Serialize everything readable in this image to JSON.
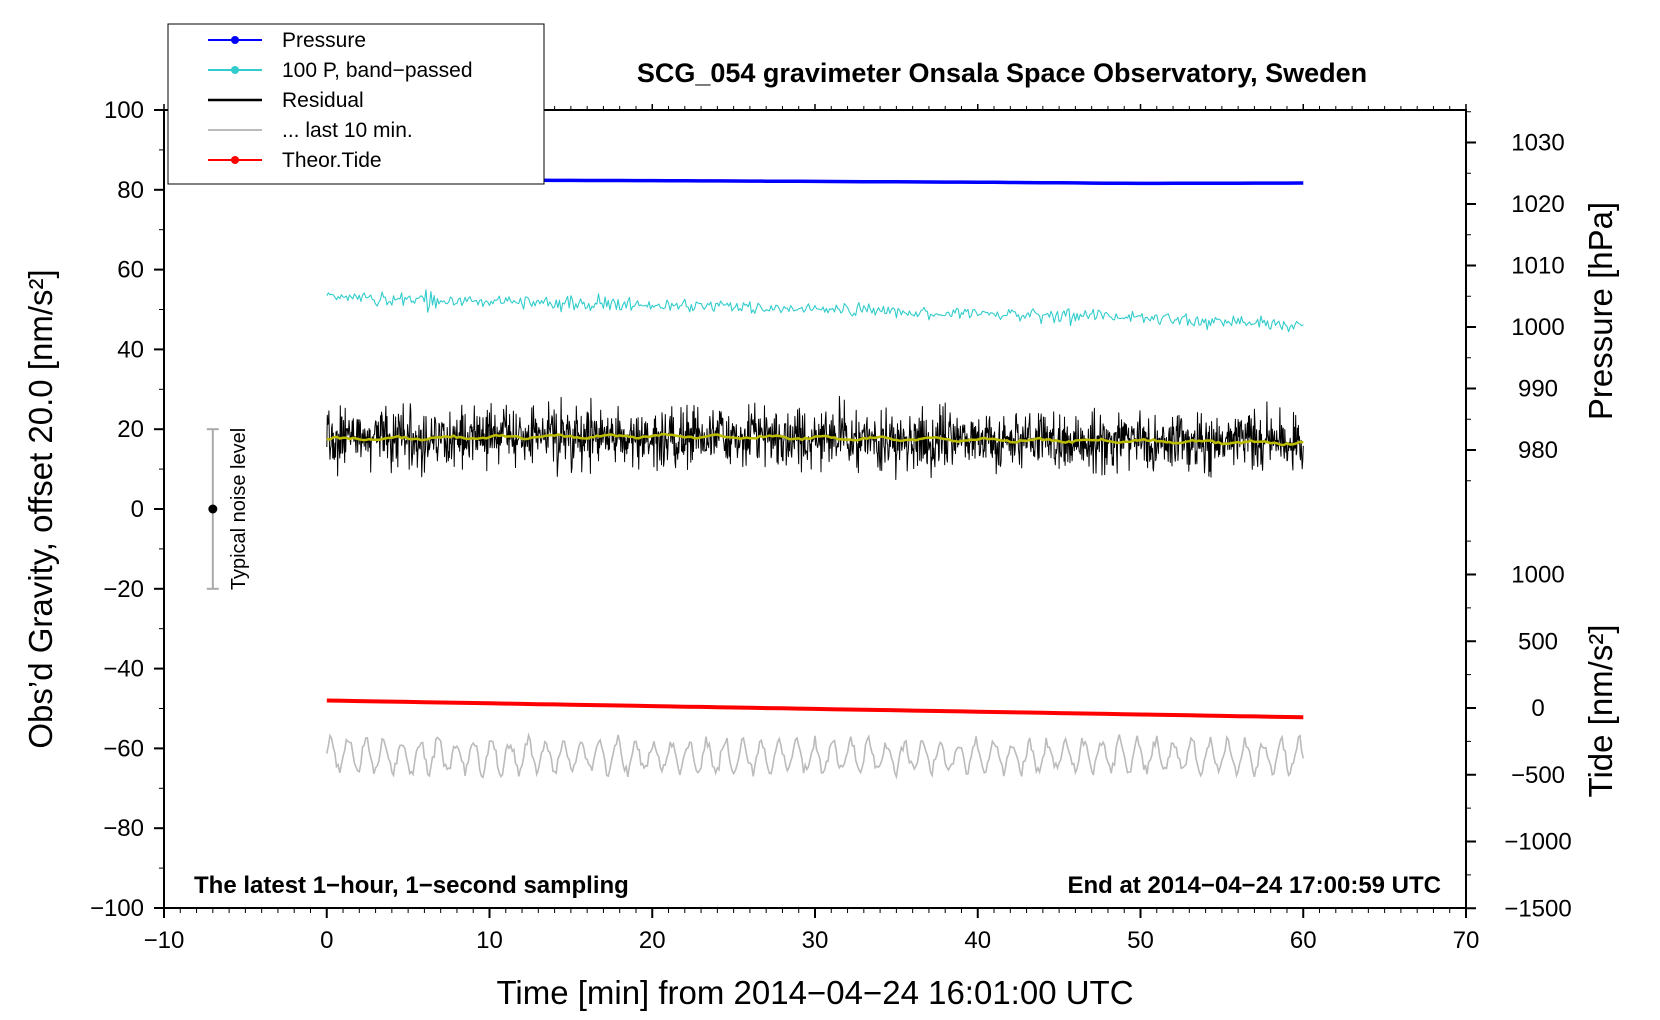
{
  "chart_data": {
    "type": "line",
    "title": "SCG_054 gravimeter Onsala Space Observatory, Sweden",
    "xlabel": "Time [min] from 2014−04−24 16:01:00 UTC",
    "ylabel_left": "Obs’d Gravity, offset 20.0 [nm/s²]",
    "ylabel_right_top": "Pressure [hPa]",
    "ylabel_right_bottom": "Tide [nm/s²]",
    "xlim": [
      -10,
      70
    ],
    "ylim_left": [
      -100,
      100
    ],
    "x_ticks": [
      "−10",
      "0",
      "10",
      "20",
      "30",
      "40",
      "50",
      "60",
      "70"
    ],
    "y_left_ticks": [
      "100",
      "80",
      "60",
      "40",
      "20",
      "0",
      "−20",
      "−40",
      "−60",
      "−80",
      "−100"
    ],
    "y_pressure_ticks": [
      "1030",
      "1020",
      "1010",
      "1000",
      "990",
      "980"
    ],
    "y_tide_ticks": [
      "1000",
      "500",
      "0",
      "−500",
      "−1000",
      "−1500"
    ],
    "pressure_axis_values": [
      1030,
      1020,
      1010,
      1000,
      990,
      980
    ],
    "tide_axis_values": [
      1000,
      500,
      0,
      -500,
      -1000,
      -1500
    ],
    "series": [
      {
        "name": "Pressure",
        "color": "#0000ff",
        "x": [
          0,
          10,
          20,
          30,
          40,
          50,
          60
        ],
        "values": [
          82.2,
          82.4,
          82.3,
          82.1,
          81.9,
          81.6,
          81.7
        ]
      },
      {
        "name": "100 P, band−passed",
        "color": "#33cccc",
        "x": [
          0,
          10,
          20,
          30,
          40,
          50,
          60
        ],
        "values": [
          53,
          52,
          51,
          50,
          49,
          48,
          46
        ]
      },
      {
        "name": "Residual",
        "color": "#000000",
        "x": [
          0,
          10,
          20,
          30,
          40,
          50,
          60
        ],
        "values": [
          17.5,
          18,
          18.3,
          17.8,
          17.3,
          17,
          16.5
        ]
      },
      {
        "name": "... last 10 min.",
        "color": "#bbbbbb",
        "x": [
          0,
          10,
          20,
          30,
          40,
          50,
          60
        ],
        "values": [
          -62,
          -62,
          -62,
          -62,
          -62,
          -62,
          -62
        ]
      },
      {
        "name": "Theor.Tide",
        "color": "#ff0000",
        "x": [
          0,
          10,
          20,
          30,
          40,
          50,
          60
        ],
        "values": [
          -48,
          -48.7,
          -49.4,
          -50.1,
          -50.8,
          -51.5,
          -52.2
        ]
      }
    ],
    "smoothed_color": "#bbbb00",
    "noise_bar": {
      "label": "Typical noise level",
      "x": -7,
      "y": 0,
      "low": -20,
      "high": 20
    },
    "note_left": "The latest 1−hour, 1−second sampling",
    "note_right": "End at 2014−04−24 17:00:59 UTC"
  }
}
